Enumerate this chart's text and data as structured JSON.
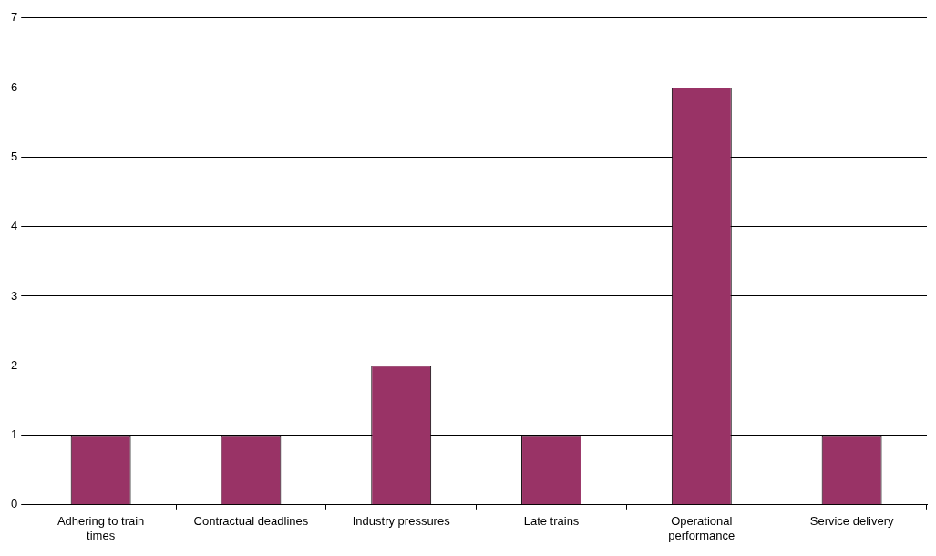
{
  "chart_data": {
    "type": "bar",
    "categories": [
      "Adhering to train times",
      "Contractual deadlines",
      "Industry pressures",
      "Late trains",
      "Operational performance",
      "Service delivery"
    ],
    "values": [
      1,
      1,
      2,
      1,
      6,
      1
    ],
    "color": "#993366",
    "ylim": [
      0,
      7
    ],
    "yticks": [
      0,
      1,
      2,
      3,
      4,
      5,
      6,
      7
    ],
    "grid": "y",
    "legend": false
  }
}
